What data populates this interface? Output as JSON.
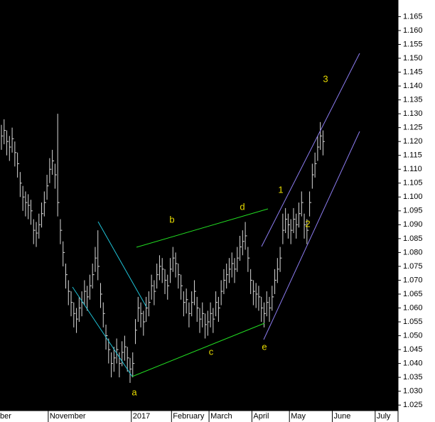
{
  "chart_data": {
    "type": "ohlc",
    "high": [
      1.126,
      1.128,
      1.124,
      1.122,
      1.125,
      1.12,
      1.116,
      1.109,
      1.104,
      1.102,
      1.101,
      1.099,
      1.092,
      1.091,
      1.094,
      1.098,
      1.102,
      1.108,
      1.114,
      1.117,
      1.112,
      1.13,
      1.092,
      1.084,
      1.076,
      1.07,
      1.066,
      1.062,
      1.06,
      1.064,
      1.066,
      1.07,
      1.068,
      1.072,
      1.076,
      1.082,
      1.088,
      1.069,
      1.062,
      1.054,
      1.049,
      1.044,
      1.046,
      1.049,
      1.044,
      1.048,
      1.05,
      1.046,
      1.042,
      1.044,
      1.056,
      1.064,
      1.062,
      1.059,
      1.064,
      1.066,
      1.072,
      1.07,
      1.076,
      1.079,
      1.078,
      1.074,
      1.072,
      1.078,
      1.082,
      1.08,
      1.076,
      1.072,
      1.066,
      1.067,
      1.062,
      1.066,
      1.07,
      1.064,
      1.06,
      1.062,
      1.058,
      1.059,
      1.062,
      1.06,
      1.066,
      1.064,
      1.07,
      1.074,
      1.076,
      1.078,
      1.08,
      1.078,
      1.082,
      1.086,
      1.088,
      1.091,
      1.082,
      1.074,
      1.07,
      1.069,
      1.068,
      1.064,
      1.062,
      1.066,
      1.064,
      1.068,
      1.074,
      1.078,
      1.082,
      1.094,
      1.096,
      1.094,
      1.092,
      1.096,
      1.094,
      1.098,
      1.102,
      1.094,
      1.092,
      1.102,
      1.112,
      1.116,
      1.122,
      1.127,
      1.124
    ],
    "low": [
      1.117,
      1.119,
      1.115,
      1.113,
      1.116,
      1.111,
      1.107,
      1.1,
      1.095,
      1.093,
      1.092,
      1.09,
      1.083,
      1.082,
      1.085,
      1.089,
      1.093,
      1.099,
      1.105,
      1.108,
      1.103,
      1.093,
      1.083,
      1.075,
      1.067,
      1.061,
      1.057,
      1.053,
      1.051,
      1.055,
      1.057,
      1.061,
      1.059,
      1.063,
      1.067,
      1.073,
      1.07,
      1.06,
      1.053,
      1.045,
      1.04,
      1.035,
      1.037,
      1.04,
      1.035,
      1.039,
      1.041,
      1.037,
      1.033,
      1.035,
      1.047,
      1.055,
      1.053,
      1.05,
      1.055,
      1.057,
      1.063,
      1.061,
      1.067,
      1.07,
      1.069,
      1.065,
      1.063,
      1.069,
      1.073,
      1.071,
      1.067,
      1.063,
      1.057,
      1.058,
      1.053,
      1.057,
      1.061,
      1.055,
      1.051,
      1.053,
      1.049,
      1.05,
      1.053,
      1.051,
      1.057,
      1.055,
      1.061,
      1.065,
      1.067,
      1.069,
      1.071,
      1.069,
      1.073,
      1.077,
      1.079,
      1.081,
      1.073,
      1.065,
      1.061,
      1.06,
      1.059,
      1.055,
      1.053,
      1.057,
      1.055,
      1.059,
      1.065,
      1.069,
      1.073,
      1.083,
      1.087,
      1.085,
      1.083,
      1.087,
      1.085,
      1.089,
      1.093,
      1.085,
      1.083,
      1.093,
      1.103,
      1.107,
      1.113,
      1.117,
      1.115
    ],
    "close": [
      1.122,
      1.124,
      1.12,
      1.118,
      1.121,
      1.116,
      1.112,
      1.105,
      1.1,
      1.098,
      1.097,
      1.095,
      1.088,
      1.087,
      1.09,
      1.094,
      1.098,
      1.104,
      1.11,
      1.113,
      1.108,
      1.098,
      1.088,
      1.08,
      1.072,
      1.066,
      1.062,
      1.058,
      1.056,
      1.06,
      1.062,
      1.066,
      1.064,
      1.068,
      1.072,
      1.078,
      1.075,
      1.065,
      1.058,
      1.05,
      1.045,
      1.04,
      1.042,
      1.045,
      1.04,
      1.044,
      1.046,
      1.042,
      1.038,
      1.04,
      1.052,
      1.06,
      1.058,
      1.055,
      1.06,
      1.062,
      1.068,
      1.066,
      1.072,
      1.075,
      1.074,
      1.07,
      1.068,
      1.074,
      1.078,
      1.076,
      1.072,
      1.068,
      1.062,
      1.063,
      1.058,
      1.062,
      1.066,
      1.06,
      1.056,
      1.058,
      1.054,
      1.055,
      1.058,
      1.056,
      1.062,
      1.06,
      1.066,
      1.07,
      1.072,
      1.074,
      1.076,
      1.074,
      1.078,
      1.082,
      1.084,
      1.086,
      1.078,
      1.07,
      1.066,
      1.065,
      1.064,
      1.06,
      1.058,
      1.062,
      1.06,
      1.064,
      1.07,
      1.074,
      1.078,
      1.088,
      1.092,
      1.09,
      1.088,
      1.092,
      1.09,
      1.094,
      1.098,
      1.09,
      1.088,
      1.098,
      1.108,
      1.112,
      1.118,
      1.122,
      1.12
    ],
    "color": "#d8d8d8",
    "xlim": [
      0,
      148
    ],
    "xticks": [
      {
        "value": 0,
        "label": "ber"
      },
      {
        "value": 18,
        "label": "November"
      },
      {
        "value": 49,
        "label": "2017"
      },
      {
        "value": 64,
        "label": "February"
      },
      {
        "value": 78,
        "label": "March"
      },
      {
        "value": 94,
        "label": "April"
      },
      {
        "value": 108,
        "label": "May"
      },
      {
        "value": 124,
        "label": "June"
      },
      {
        "value": 140,
        "label": "July"
      }
    ],
    "ylim": [
      1.023,
      1.171
    ],
    "yticks": [
      1.025,
      {
        "value": 1.03,
        "label": "1.030"
      },
      1.035,
      {
        "value": 1.04,
        "label": "1.040"
      },
      1.045,
      {
        "value": 1.05,
        "label": "1.050"
      },
      1.055,
      {
        "value": 1.06,
        "label": "1.060"
      },
      1.065,
      {
        "value": 1.07,
        "label": "1.070"
      },
      1.075,
      {
        "value": 1.08,
        "label": "1.080"
      },
      1.085,
      {
        "value": 1.09,
        "label": "1.090"
      },
      1.095,
      {
        "value": 1.1,
        "label": "1.100"
      },
      1.105,
      {
        "value": 1.11,
        "label": "1.110"
      },
      1.115,
      {
        "value": 1.12,
        "label": "1.120"
      },
      1.125,
      {
        "value": 1.13,
        "label": "1.130"
      },
      1.135,
      {
        "value": 1.14,
        "label": "1.140"
      },
      1.145,
      {
        "value": 1.15,
        "label": "1.150"
      },
      1.155,
      {
        "value": 1.16,
        "label": "1.160"
      },
      1.165
    ],
    "annotations": [
      "a",
      "b",
      "c",
      "d",
      "e",
      "1",
      "2",
      "3"
    ]
  }
}
